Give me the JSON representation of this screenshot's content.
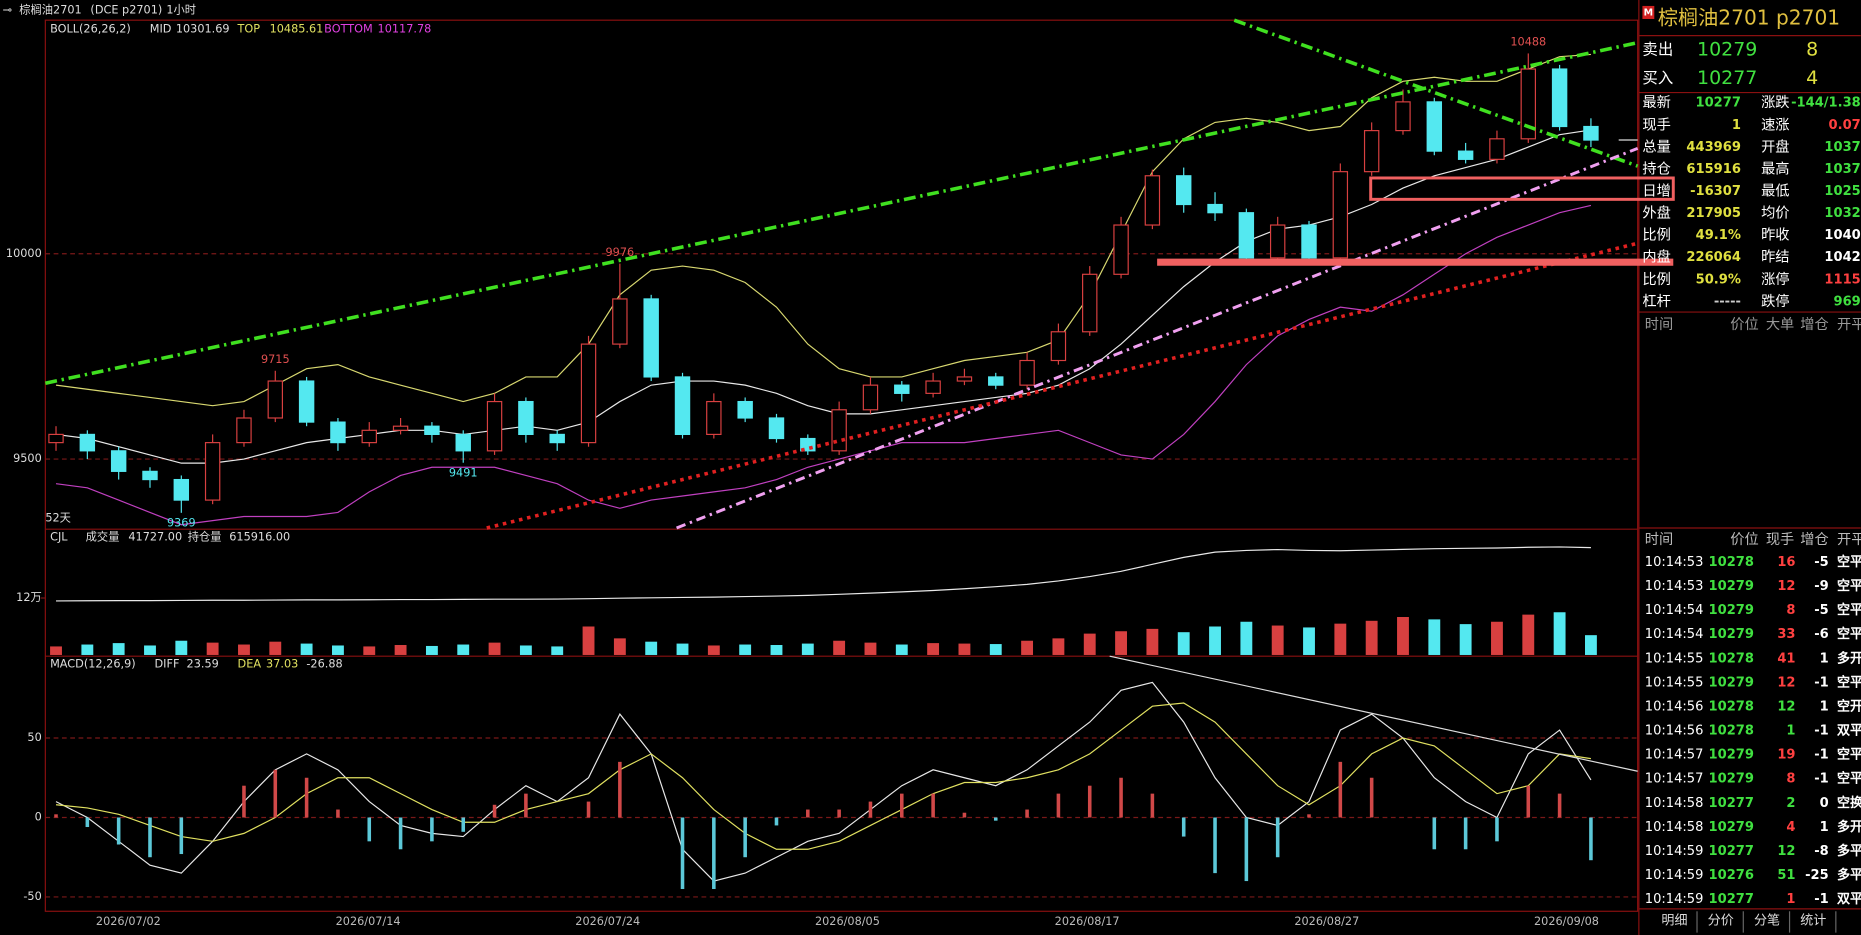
{
  "chart_data": [
    {
      "type": "candlestick",
      "indicator": "BOLL(26,26,2)",
      "up_color": "#d84040",
      "down_color": "#54e8f0",
      "open": [
        9540,
        9560,
        9520,
        9470,
        9450,
        9400,
        9540,
        9600,
        9690,
        9590,
        9540,
        9570,
        9580,
        9560,
        9520,
        9640,
        9560,
        9540,
        9780,
        9890,
        9700,
        9560,
        9640,
        9600,
        9550,
        9520,
        9620,
        9680,
        9660,
        9690,
        9700,
        9680,
        9740,
        9810,
        9950,
        10070,
        10190,
        10120,
        10100,
        9990,
        10070,
        9990,
        10200,
        10300,
        10370,
        10250,
        10230,
        10280,
        10450,
        10310
      ],
      "high": [
        9580,
        9570,
        9530,
        9480,
        9460,
        9560,
        9620,
        9715,
        9700,
        9600,
        9590,
        9600,
        9590,
        9570,
        9660,
        9650,
        9570,
        9800,
        9976,
        9900,
        9710,
        9660,
        9650,
        9610,
        9560,
        9640,
        9700,
        9690,
        9710,
        9720,
        9710,
        9760,
        9830,
        9970,
        10090,
        10205,
        10210,
        10150,
        10110,
        10090,
        10080,
        10220,
        10320,
        10400,
        10380,
        10270,
        10300,
        10488,
        10460,
        10330
      ],
      "low": [
        9520,
        9500,
        9450,
        9430,
        9369,
        9390,
        9530,
        9590,
        9580,
        9520,
        9530,
        9560,
        9540,
        9491,
        9510,
        9540,
        9520,
        9530,
        9770,
        9690,
        9550,
        9550,
        9590,
        9540,
        9510,
        9510,
        9610,
        9640,
        9650,
        9680,
        9670,
        9670,
        9730,
        9800,
        9940,
        10060,
        10100,
        10080,
        9980,
        9980,
        9980,
        9980,
        10190,
        10290,
        10240,
        10220,
        10220,
        10270,
        10300,
        10260
      ],
      "close": [
        9560,
        9520,
        9470,
        9450,
        9400,
        9540,
        9600,
        9690,
        9590,
        9540,
        9570,
        9580,
        9560,
        9520,
        9640,
        9560,
        9540,
        9780,
        9890,
        9700,
        9560,
        9640,
        9600,
        9550,
        9520,
        9620,
        9680,
        9660,
        9690,
        9700,
        9680,
        9740,
        9810,
        9950,
        10070,
        10190,
        10120,
        10100,
        9990,
        10070,
        9990,
        10200,
        10300,
        10370,
        10250,
        10230,
        10280,
        10450,
        10310,
        10277
      ],
      "series": [
        {
          "name": "MID",
          "color": "#e8e8e8",
          "values": [
            9560,
            9550,
            9530,
            9510,
            9490,
            9490,
            9500,
            9520,
            9540,
            9550,
            9560,
            9570,
            9570,
            9560,
            9570,
            9580,
            9570,
            9590,
            9640,
            9680,
            9690,
            9690,
            9680,
            9660,
            9630,
            9610,
            9610,
            9620,
            9630,
            9640,
            9650,
            9660,
            9680,
            9720,
            9780,
            9850,
            9920,
            9980,
            10030,
            10060,
            10070,
            10090,
            10120,
            10160,
            10190,
            10210,
            10230,
            10260,
            10290,
            10301.69
          ]
        },
        {
          "name": "TOP",
          "color": "#d8d870",
          "values": [
            9680,
            9670,
            9660,
            9650,
            9640,
            9630,
            9640,
            9680,
            9720,
            9730,
            9700,
            9680,
            9660,
            9640,
            9660,
            9700,
            9700,
            9780,
            9900,
            9960,
            9970,
            9960,
            9930,
            9870,
            9780,
            9720,
            9700,
            9700,
            9720,
            9740,
            9750,
            9760,
            9790,
            9900,
            10050,
            10200,
            10280,
            10320,
            10330,
            10320,
            10300,
            10310,
            10380,
            10420,
            10430,
            10420,
            10420,
            10450,
            10480,
            10485.61
          ]
        },
        {
          "name": "BOTTOM",
          "color": "#c040c0",
          "values": [
            9440,
            9430,
            9400,
            9370,
            9340,
            9350,
            9360,
            9360,
            9360,
            9370,
            9420,
            9460,
            9480,
            9480,
            9480,
            9460,
            9440,
            9400,
            9380,
            9400,
            9410,
            9420,
            9430,
            9450,
            9480,
            9500,
            9520,
            9540,
            9540,
            9540,
            9550,
            9560,
            9570,
            9540,
            9510,
            9500,
            9560,
            9640,
            9730,
            9800,
            9840,
            9870,
            9860,
            9900,
            9950,
            10000,
            10040,
            10070,
            10100,
            10117.78
          ]
        }
      ],
      "ylim": [
        9332,
        10569
      ],
      "yticks": [
        9500,
        10000
      ],
      "grid": true,
      "annotation": "52天",
      "x_labels": [
        "2026/07/02",
        "2026/07/14",
        "2026/07/24",
        "2026/08/05",
        "2026/08/17",
        "2026/08/27",
        "2026/09/08"
      ]
    },
    {
      "type": "volume",
      "indicator": "CJL",
      "series": [
        {
          "name": "成交量",
          "last_label": "41727.00",
          "values": [
            18000,
            22000,
            25000,
            20000,
            30000,
            26000,
            22000,
            28000,
            24000,
            20000,
            18000,
            21000,
            19000,
            22000,
            26000,
            20000,
            18000,
            60000,
            35000,
            28000,
            24000,
            20000,
            22000,
            21000,
            24000,
            30000,
            26000,
            22000,
            25000,
            24000,
            23000,
            30000,
            35000,
            45000,
            50000,
            55000,
            48000,
            60000,
            70000,
            62000,
            58000,
            66000,
            72000,
            80000,
            75000,
            65000,
            70000,
            85000,
            90000,
            41727
          ]
        },
        {
          "name": "持仓量",
          "last_label": "615916.00",
          "color": "#e8e8e8",
          "axis": "y2",
          "values": [
            310000,
            311000,
            312000,
            312000,
            313000,
            314000,
            314000,
            315000,
            316000,
            316000,
            317000,
            318000,
            318000,
            319000,
            320000,
            320000,
            321000,
            323000,
            326000,
            328000,
            330000,
            332000,
            335000,
            338000,
            342000,
            348000,
            355000,
            362000,
            370000,
            380000,
            392000,
            405000,
            425000,
            450000,
            480000,
            520000,
            560000,
            590000,
            600000,
            605000,
            600000,
            598000,
            602000,
            606000,
            610000,
            612000,
            614000,
            618000,
            620000,
            615916
          ]
        }
      ],
      "ylim": [
        0,
        235000
      ],
      "yticks": [
        {
          "value": 120000,
          "label": "12万"
        }
      ],
      "y2lim": [
        0,
        640000
      ]
    },
    {
      "type": "macd",
      "indicator": "MACD(12,26,9)",
      "series": [
        {
          "name": "DIFF",
          "color": "#e8e8e8",
          "values": [
            10,
            0,
            -15,
            -30,
            -35,
            -15,
            10,
            30,
            40,
            30,
            10,
            -5,
            -10,
            -12,
            5,
            20,
            10,
            25,
            65,
            40,
            -20,
            -40,
            -35,
            -25,
            -15,
            -10,
            5,
            20,
            30,
            25,
            20,
            30,
            45,
            60,
            80,
            85,
            60,
            25,
            0,
            -5,
            10,
            55,
            65,
            50,
            25,
            10,
            0,
            40,
            55,
            23.59
          ]
        },
        {
          "name": "DEA",
          "color": "#e0e060",
          "values": [
            8,
            6,
            2,
            -5,
            -12,
            -15,
            -10,
            0,
            15,
            25,
            25,
            15,
            5,
            -3,
            -3,
            5,
            10,
            15,
            30,
            40,
            25,
            5,
            -10,
            -20,
            -20,
            -15,
            -5,
            5,
            15,
            22,
            22,
            25,
            30,
            40,
            55,
            70,
            72,
            60,
            40,
            20,
            8,
            20,
            40,
            50,
            45,
            30,
            15,
            20,
            40,
            37.03
          ]
        },
        {
          "color": "#d04848",
          "color_down": "#5cc8d8",
          "values": [
            2,
            -6,
            -17,
            -25,
            -23,
            0,
            20,
            30,
            25,
            5,
            -15,
            -20,
            -15,
            -9,
            8,
            15,
            0,
            10,
            35,
            0,
            -45,
            -45,
            -25,
            -5,
            5,
            5,
            10,
            15,
            15,
            3,
            -2,
            5,
            15,
            20,
            25,
            15,
            -12,
            -35,
            -40,
            -25,
            2,
            35,
            25,
            0,
            -20,
            -20,
            -15,
            20,
            15,
            -26.88
          ]
        }
      ],
      "ylim": [
        -59,
        100
      ],
      "yticks": [
        -50,
        0,
        50
      ],
      "grid": true
    }
  ],
  "header": {
    "symbol": "棕榈油2701",
    "code": "(DCE p2701)",
    "period": "1小时"
  },
  "quote": {
    "title": "棕榈油2701  p2701",
    "sell": [
      "卖出",
      "10279",
      "8"
    ],
    "buy": [
      "买入",
      "10277",
      "4"
    ],
    "rows": [
      [
        "最新",
        "10277",
        "涨跌",
        "-144/1.38"
      ],
      [
        "现手",
        "1",
        "速涨",
        "0.07"
      ],
      [
        "总量",
        "443969",
        "开盘",
        "1037"
      ],
      [
        "持仓",
        "615916",
        "最高",
        "1037"
      ],
      [
        "日增",
        "-16307",
        "最低",
        "1025"
      ],
      [
        "外盘",
        "217905",
        "均价",
        "1032"
      ],
      [
        "比例",
        "49.1%",
        "昨收",
        "1040"
      ],
      [
        "内盘",
        "226064",
        "昨结",
        "1042"
      ],
      [
        "比例",
        "50.9%",
        "涨停",
        "1115"
      ],
      [
        "杠杆",
        "-----",
        "跌停",
        "969"
      ]
    ]
  },
  "big_orders": {
    "header": [
      "时间",
      "价位",
      "大单",
      "增仓",
      "开平"
    ]
  },
  "ticks": {
    "header": [
      "时间",
      "价位",
      "现手",
      "增仓",
      "开平"
    ],
    "rows": [
      [
        "10:14:53",
        "10278",
        "16",
        "-5",
        "空平"
      ],
      [
        "10:14:53",
        "10279",
        "12",
        "-9",
        "空平"
      ],
      [
        "10:14:54",
        "10279",
        "8",
        "-5",
        "空平"
      ],
      [
        "10:14:54",
        "10279",
        "33",
        "-6",
        "空平"
      ],
      [
        "10:14:55",
        "10278",
        "41",
        "1",
        "多开"
      ],
      [
        "10:14:55",
        "10279",
        "12",
        "-1",
        "空平"
      ],
      [
        "10:14:56",
        "10278",
        "12",
        "1",
        "空开"
      ],
      [
        "10:14:56",
        "10278",
        "1",
        "-1",
        "双平"
      ],
      [
        "10:14:57",
        "10279",
        "19",
        "-1",
        "空平"
      ],
      [
        "10:14:57",
        "10279",
        "8",
        "-1",
        "空平"
      ],
      [
        "10:14:58",
        "10277",
        "2",
        "0",
        "空换"
      ],
      [
        "10:14:58",
        "10279",
        "4",
        "1",
        "多开"
      ],
      [
        "10:14:59",
        "10277",
        "12",
        "-8",
        "多平"
      ],
      [
        "10:14:59",
        "10276",
        "51",
        "-25",
        "多平"
      ],
      [
        "10:14:59",
        "10277",
        "1",
        "-1",
        "双平"
      ]
    ],
    "colors": [
      "#ff4040",
      "#ff4040",
      "#ff4040",
      "#ff4040",
      "#ff4040",
      "#ff4040",
      "#40e040",
      "#40e040",
      "#ff4040",
      "#ff4040",
      "#40e040",
      "#ff4040",
      "#40e040",
      "#40e040",
      "#ff4040"
    ]
  },
  "tabs": [
    "明细",
    "分价",
    "分笔",
    "统计"
  ]
}
